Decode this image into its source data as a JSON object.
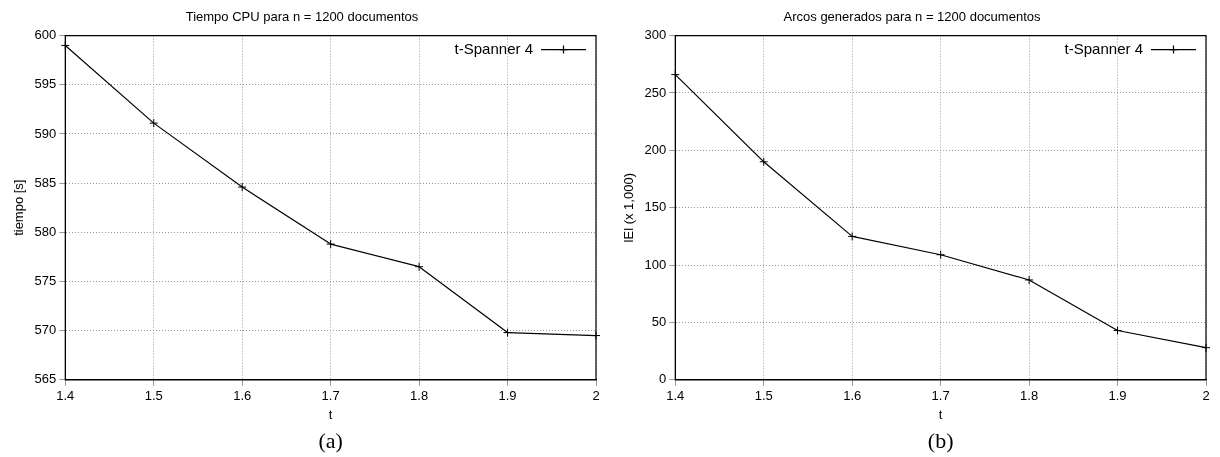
{
  "chart_data": [
    {
      "type": "line",
      "title": "Tiempo CPU para n = 1200 documentos",
      "xlabel": "t",
      "ylabel": "tiempo [s]",
      "annotations": [
        "(a)"
      ],
      "x": [
        1.4,
        1.5,
        1.6,
        1.7,
        1.8,
        1.9,
        2
      ],
      "series": [
        {
          "name": "t-Spanner 4",
          "color": "#000000",
          "values": [
            599,
            591.1,
            584.6,
            578.8,
            576.5,
            569.8,
            569.5
          ]
        }
      ],
      "xlim": [
        1.4,
        2
      ],
      "xticks": [
        1.4,
        1.5,
        1.6,
        1.7,
        1.8,
        1.9,
        2
      ],
      "ylim": [
        565,
        600
      ],
      "yticks": [
        565,
        570,
        575,
        580,
        585,
        590,
        595,
        600
      ],
      "grid": true,
      "legend": "top right",
      "marker": "cross",
      "line_style": "solid"
    },
    {
      "type": "line",
      "title": "Arcos generados para n = 1200 documentos",
      "xlabel": "t",
      "ylabel": "lEl (x 1,000)",
      "annotations": [
        "(b)"
      ],
      "x": [
        1.4,
        1.5,
        1.6,
        1.7,
        1.8,
        1.9,
        2
      ],
      "series": [
        {
          "name": "t-Spanner 4",
          "color": "#000000",
          "values": [
            266,
            190,
            125,
            109,
            87,
            43,
            28
          ]
        }
      ],
      "xlim": [
        1.4,
        2
      ],
      "xticks": [
        1.4,
        1.5,
        1.6,
        1.7,
        1.8,
        1.9,
        2
      ],
      "ylim": [
        0,
        300
      ],
      "yticks": [
        0,
        50,
        100,
        150,
        200,
        250,
        300
      ],
      "grid": true,
      "legend": "top right",
      "marker": "cross",
      "line_style": "solid"
    }
  ]
}
